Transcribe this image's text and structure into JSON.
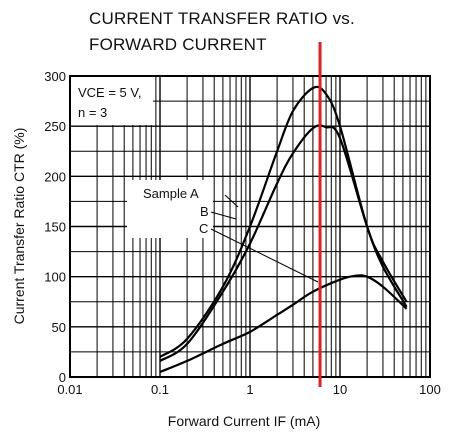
{
  "chart_data": {
    "type": "line",
    "title_line1": "CURRENT TRANSFER RATIO vs.",
    "title_line2": "FORWARD CURRENT",
    "xlabel": "Forward Current  IF (mA)",
    "ylabel": "Current Transfer Ratio  CTR (%)",
    "xscale": "log",
    "xlim": [
      0.01,
      100
    ],
    "ylim": [
      0,
      300
    ],
    "xticks": [
      "0.01",
      "0.1",
      "1",
      "10",
      "100"
    ],
    "yticks": [
      "0",
      "50",
      "100",
      "150",
      "200",
      "250",
      "300"
    ],
    "conditions": [
      "VCE = 5 V,",
      "n = 3"
    ],
    "grid": true,
    "marker_line": {
      "x": 6,
      "color": "#e02020"
    },
    "series": [
      {
        "name": "Sample A",
        "x": [
          0.1,
          0.2,
          0.5,
          1,
          2,
          3,
          5,
          7,
          10,
          20,
          30,
          55
        ],
        "y": [
          20,
          38,
          90,
          150,
          225,
          265,
          288,
          282,
          250,
          150,
          115,
          75
        ]
      },
      {
        "name": "B",
        "x": [
          0.1,
          0.2,
          0.5,
          1,
          2,
          3,
          5,
          7,
          10,
          20,
          30,
          55
        ],
        "y": [
          16,
          33,
          85,
          133,
          193,
          223,
          248,
          249,
          238,
          150,
          110,
          70
        ]
      },
      {
        "name": "C",
        "x": [
          0.1,
          0.2,
          0.5,
          1,
          2,
          3,
          5,
          10,
          15,
          20,
          30,
          55
        ],
        "y": [
          5,
          16,
          33,
          45,
          62,
          72,
          85,
          97,
          101,
          100,
          90,
          68
        ]
      }
    ],
    "annotations": [
      "Sample A",
      "B",
      "C"
    ]
  }
}
